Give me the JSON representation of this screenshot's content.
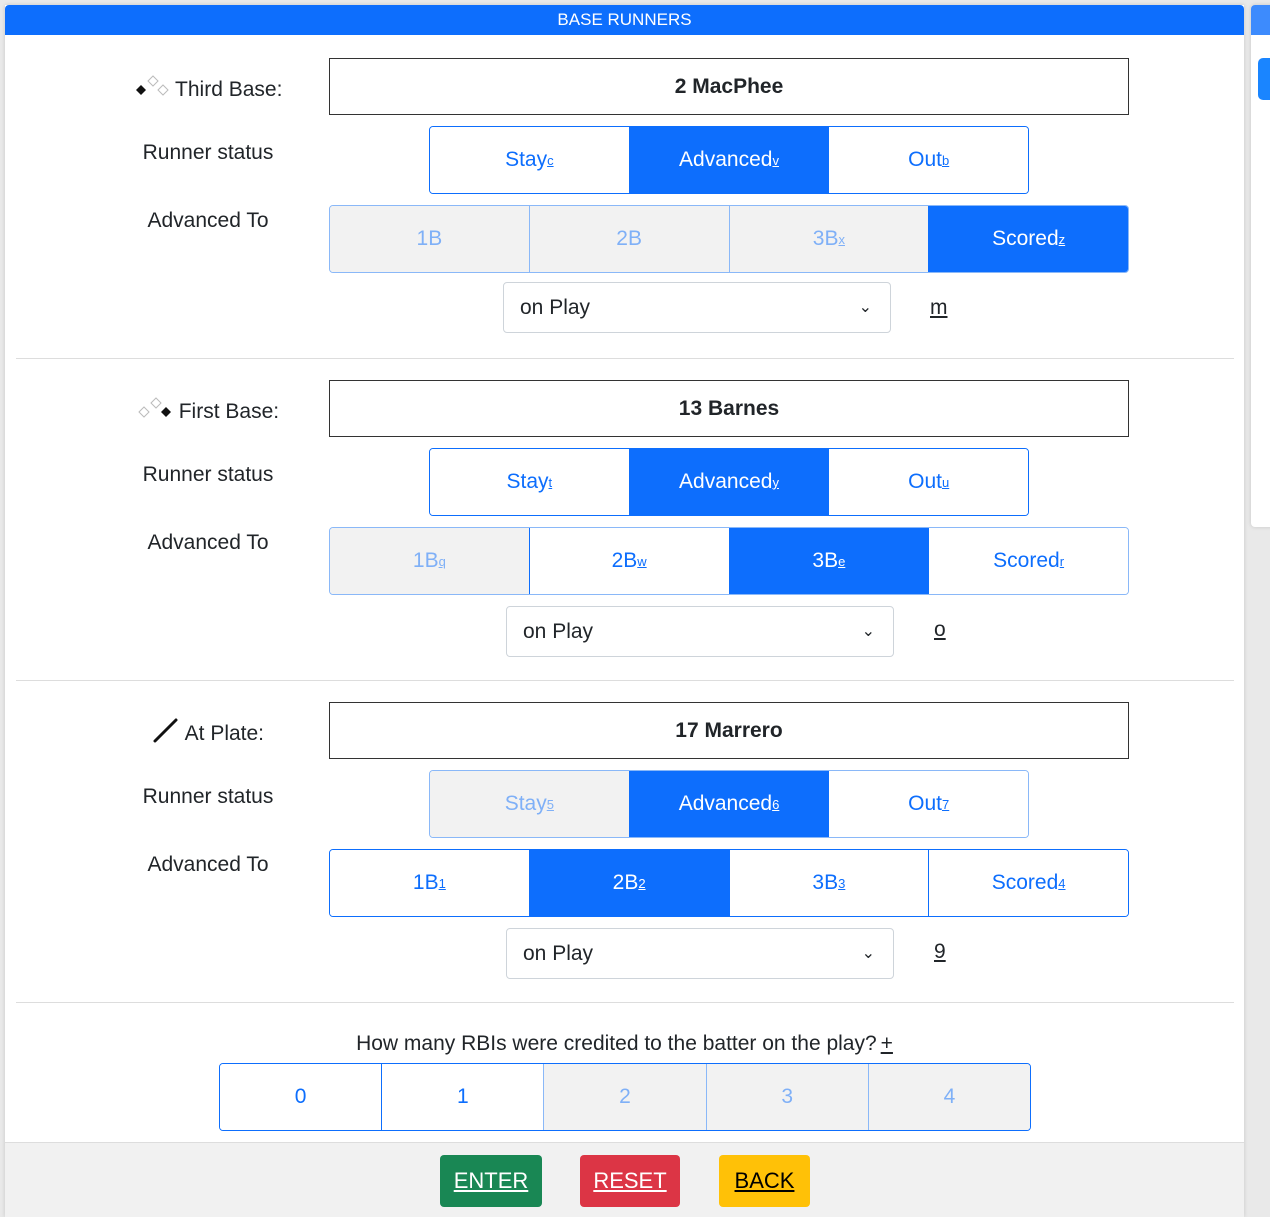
{
  "header": {
    "title": "BASE RUNNERS"
  },
  "sections": [
    {
      "label": "Third Base:",
      "icon": "base-diamond-third-icon",
      "player": "2 MacPhee",
      "status_label": "Runner status",
      "advanced_label": "Advanced To",
      "status": [
        {
          "text": "Stay",
          "key": "c",
          "state": "normal"
        },
        {
          "text": "Advanced",
          "key": "v",
          "state": "active"
        },
        {
          "text": "Out",
          "key": "b",
          "state": "normal"
        }
      ],
      "advanced": [
        {
          "text": "1B",
          "key": "",
          "state": "disabled"
        },
        {
          "text": "2B",
          "key": "",
          "state": "disabled"
        },
        {
          "text": "3B",
          "key": "x",
          "state": "disabled"
        },
        {
          "text": "Scored",
          "key": "z",
          "state": "active"
        }
      ],
      "play": "on Play",
      "hotkey": "m"
    },
    {
      "label": "First Base:",
      "icon": "base-diamond-first-icon",
      "player": "13 Barnes",
      "status_label": "Runner status",
      "advanced_label": "Advanced To",
      "status": [
        {
          "text": "Stay",
          "key": "t",
          "state": "normal"
        },
        {
          "text": "Advanced",
          "key": "y",
          "state": "active"
        },
        {
          "text": "Out",
          "key": "u",
          "state": "normal"
        }
      ],
      "advanced": [
        {
          "text": "1B",
          "key": "q",
          "state": "disabled"
        },
        {
          "text": "2B",
          "key": "w",
          "state": "normal"
        },
        {
          "text": "3B",
          "key": "e",
          "state": "active"
        },
        {
          "text": "Scored",
          "key": "r",
          "state": "normal"
        }
      ],
      "play": "on Play",
      "hotkey": "o"
    },
    {
      "label": "At Plate:",
      "icon": "bat-icon",
      "player": "17 Marrero",
      "status_label": "Runner status",
      "advanced_label": "Advanced To",
      "status": [
        {
          "text": "Stay",
          "key": "5",
          "state": "disabled"
        },
        {
          "text": "Advanced",
          "key": "6",
          "state": "active"
        },
        {
          "text": "Out",
          "key": "7",
          "state": "normal"
        }
      ],
      "advanced": [
        {
          "text": "1B",
          "key": "1",
          "state": "normal"
        },
        {
          "text": "2B",
          "key": "2",
          "state": "active"
        },
        {
          "text": "3B",
          "key": "3",
          "state": "normal"
        },
        {
          "text": "Scored",
          "key": "4",
          "state": "normal"
        }
      ],
      "play": "on Play",
      "hotkey": "9"
    }
  ],
  "rbi": {
    "question": "How many RBIs were credited to the batter on the play?",
    "hotkey": "+",
    "options": [
      {
        "text": "0",
        "state": "normal"
      },
      {
        "text": "1",
        "state": "normal"
      },
      {
        "text": "2",
        "state": "disabled"
      },
      {
        "text": "3",
        "state": "disabled"
      },
      {
        "text": "4",
        "state": "disabled"
      }
    ]
  },
  "footer": {
    "enter": "ENTER",
    "reset": "RESET",
    "back": "BACK"
  },
  "colors": {
    "primary": "#0d6efd",
    "enter": "#198754",
    "reset": "#dc3545",
    "back": "#ffc107"
  }
}
